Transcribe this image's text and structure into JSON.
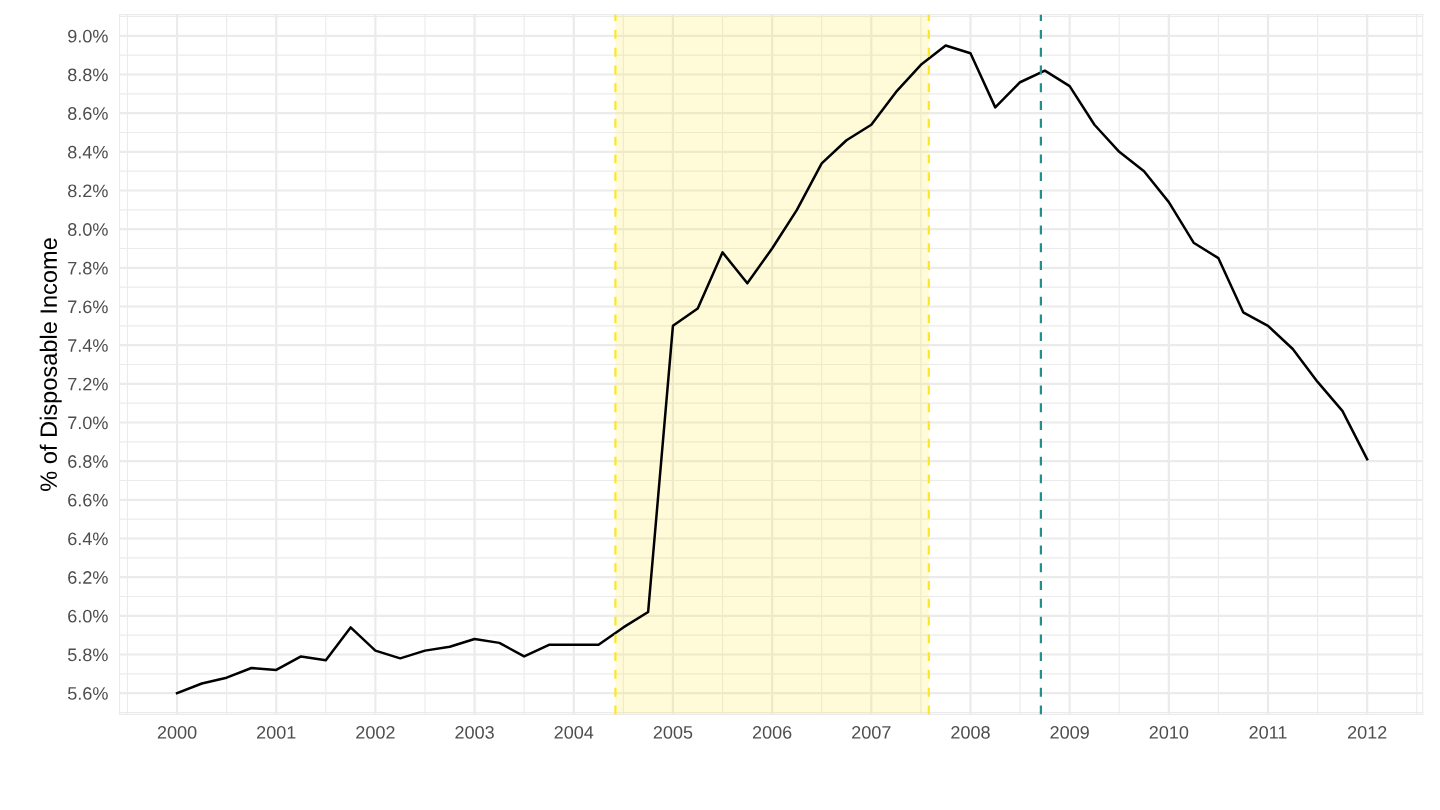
{
  "chart_data": {
    "type": "line",
    "ylabel": "% of Disposable Income",
    "x": [
      2000.0,
      2000.25,
      2000.5,
      2000.75,
      2001.0,
      2001.25,
      2001.5,
      2001.75,
      2002.0,
      2002.25,
      2002.5,
      2002.75,
      2003.0,
      2003.25,
      2003.5,
      2003.75,
      2004.0,
      2004.25,
      2004.5,
      2004.75,
      2005.0,
      2005.25,
      2005.5,
      2005.75,
      2006.0,
      2006.25,
      2006.5,
      2006.75,
      2007.0,
      2007.25,
      2007.5,
      2007.75,
      2008.0,
      2008.25,
      2008.5,
      2008.75,
      2009.0,
      2009.25,
      2009.5,
      2009.75,
      2010.0,
      2010.25,
      2010.5,
      2010.75,
      2011.0,
      2011.25,
      2011.5,
      2011.75,
      2012.0
    ],
    "series": [
      {
        "color": "#000000",
        "values": [
          5.6,
          5.65,
          5.68,
          5.73,
          5.72,
          5.79,
          5.77,
          5.94,
          5.82,
          5.78,
          5.82,
          5.84,
          5.88,
          5.86,
          5.79,
          5.85,
          5.85,
          5.85,
          5.94,
          6.02,
          7.5,
          7.59,
          7.88,
          7.72,
          7.9,
          8.1,
          8.34,
          8.46,
          8.54,
          8.71,
          8.85,
          8.95,
          8.91,
          8.63,
          8.76,
          8.82,
          8.74,
          8.54,
          8.4,
          8.3,
          8.14,
          7.93,
          7.85,
          7.57,
          7.5,
          7.38,
          7.21,
          7.06,
          6.81
        ]
      }
    ],
    "xlim": [
      1999.42,
      2012.56
    ],
    "xticks": [
      2000,
      2001,
      2002,
      2003,
      2004,
      2005,
      2006,
      2007,
      2008,
      2009,
      2010,
      2011,
      2012
    ],
    "ylim": [
      5.49,
      9.11
    ],
    "yticks": [
      {
        "value": 5.6,
        "label": "5.6%"
      },
      {
        "value": 5.8,
        "label": "5.8%"
      },
      {
        "value": 6.0,
        "label": "6.0%"
      },
      {
        "value": 6.2,
        "label": "6.2%"
      },
      {
        "value": 6.4,
        "label": "6.4%"
      },
      {
        "value": 6.6,
        "label": "6.6%"
      },
      {
        "value": 6.8,
        "label": "6.8%"
      },
      {
        "value": 7.0,
        "label": "7.0%"
      },
      {
        "value": 7.2,
        "label": "7.2%"
      },
      {
        "value": 7.4,
        "label": "7.4%"
      },
      {
        "value": 7.6,
        "label": "7.6%"
      },
      {
        "value": 7.8,
        "label": "7.8%"
      },
      {
        "value": 8.0,
        "label": "8.0%"
      },
      {
        "value": 8.2,
        "label": "8.2%"
      },
      {
        "value": 8.4,
        "label": "8.4%"
      },
      {
        "value": 8.6,
        "label": "8.6%"
      },
      {
        "value": 8.8,
        "label": "8.8%"
      },
      {
        "value": 9.0,
        "label": "9.0%"
      }
    ],
    "bands": [
      {
        "axis": "x",
        "from": 2004.42,
        "to": 2007.58,
        "color": "#fde725"
      }
    ],
    "ref_lines": [
      {
        "axis": "x",
        "value": 2004.42,
        "color": "#fde725",
        "line_style": "dashed"
      },
      {
        "axis": "x",
        "value": 2007.58,
        "color": "#fde725",
        "line_style": "dashed"
      },
      {
        "axis": "x",
        "value": 2008.71,
        "color": "#21908c",
        "line_style": "dashed"
      }
    ],
    "grid": true,
    "marker": "none",
    "line_style": "solid"
  }
}
